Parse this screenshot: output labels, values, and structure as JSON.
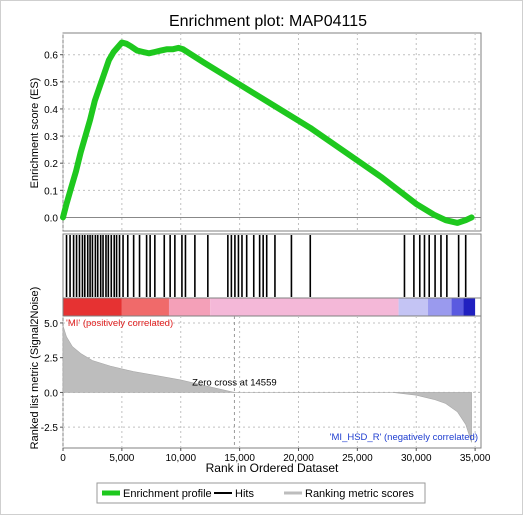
{
  "chart_data": {
    "type": "line",
    "title": "Enrichment plot: MAP04115",
    "xlabel": "Rank in Ordered Dataset",
    "xlim": [
      0,
      35500
    ],
    "x_ticks": [
      0,
      5000,
      10000,
      15000,
      20000,
      25000,
      30000,
      35000
    ],
    "x_tick_labels": [
      "0",
      "5,000",
      "10,000",
      "15,000",
      "20,000",
      "25,000",
      "30,000",
      "35,000"
    ],
    "grid": true,
    "legend_placement": "bottom",
    "colors": {
      "enrichment": "#1ec81e",
      "hits": "#000000",
      "ranking": "#bdbdbd",
      "positive": "#e63232",
      "negative": "#2a2ad8",
      "annotation_pos": "#e02020",
      "annotation_neg": "#1f3ed0"
    },
    "es_panel": {
      "ylabel": "Enrichment score (ES)",
      "ylim": [
        -0.05,
        0.68
      ],
      "y_ticks": [
        0.0,
        0.1,
        0.2,
        0.3,
        0.4,
        0.5,
        0.6
      ],
      "y_tick_labels": [
        "0.0",
        "0.1",
        "0.2",
        "0.3",
        "0.4",
        "0.5",
        "0.6"
      ],
      "series": [
        {
          "name": "Enrichment profile",
          "x": [
            0,
            300,
            700,
            1100,
            1500,
            1900,
            2300,
            2700,
            3100,
            3500,
            3900,
            4300,
            4700,
            5000,
            5400,
            5800,
            6300,
            6800,
            7300,
            7800,
            8300,
            8800,
            9300,
            9800,
            10200,
            12000,
            15000,
            18000,
            21000,
            24000,
            27000,
            30000,
            31500,
            32500,
            33500,
            34200,
            34700
          ],
          "y": [
            0.0,
            0.05,
            0.11,
            0.17,
            0.24,
            0.3,
            0.36,
            0.43,
            0.48,
            0.53,
            0.58,
            0.61,
            0.63,
            0.645,
            0.64,
            0.63,
            0.615,
            0.61,
            0.605,
            0.61,
            0.615,
            0.62,
            0.62,
            0.625,
            0.62,
            0.57,
            0.49,
            0.41,
            0.33,
            0.24,
            0.15,
            0.05,
            0.01,
            -0.01,
            -0.02,
            -0.01,
            0.0
          ]
        }
      ]
    },
    "hits_panel": {
      "legend_label": "Hits",
      "positions": [
        300,
        600,
        900,
        1150,
        1400,
        1650,
        1850,
        2100,
        2300,
        2500,
        2750,
        2950,
        3200,
        3400,
        3650,
        3850,
        4100,
        4350,
        4550,
        4800,
        5100,
        5500,
        6000,
        6500,
        7100,
        7400,
        7800,
        8600,
        9100,
        9500,
        10100,
        10400,
        11200,
        12300,
        14000,
        14300,
        14600,
        14900,
        15200,
        15600,
        16200,
        16700,
        17000,
        17300,
        18000,
        19400,
        21000,
        29000,
        29800,
        30300,
        30700,
        31100,
        31600,
        32100,
        32600,
        33600,
        34200
      ]
    },
    "ranking_panel": {
      "ylabel": "Ranked list metric (Signal2Noise)",
      "legend_label": "Ranking metric scores",
      "ylim": [
        -4.0,
        5.5
      ],
      "y_ticks": [
        5.0,
        2.5,
        0.0,
        -2.5
      ],
      "y_tick_labels": [
        "5.0",
        "2.5",
        "0.0",
        "-2.5"
      ],
      "zero_cross": 14559,
      "zero_cross_label": "Zero cross at 14559",
      "positive_label": "'MI' (positively correlated)",
      "negative_label": "'MI_HSD_R' (negatively correlated)",
      "curve": {
        "x": [
          0,
          300,
          800,
          1500,
          2500,
          4000,
          6000,
          8000,
          10000,
          12000,
          14559,
          28000,
          30000,
          31500,
          32500,
          33500,
          34200,
          34700
        ],
        "y": [
          4.8,
          4.0,
          3.3,
          2.8,
          2.3,
          1.9,
          1.5,
          1.2,
          0.9,
          0.5,
          0.0,
          0.0,
          -0.2,
          -0.5,
          -0.8,
          -1.4,
          -2.3,
          -3.6
        ]
      },
      "color_bar": [
        {
          "start": 0,
          "end": 5000,
          "color": "#e63232"
        },
        {
          "start": 5000,
          "end": 9000,
          "color": "#f06a6a"
        },
        {
          "start": 9000,
          "end": 12500,
          "color": "#f4a0b8"
        },
        {
          "start": 12500,
          "end": 28500,
          "color": "#f4b8d8"
        },
        {
          "start": 28500,
          "end": 31000,
          "color": "#c4c4f4"
        },
        {
          "start": 31000,
          "end": 33000,
          "color": "#9a9aee"
        },
        {
          "start": 33000,
          "end": 34000,
          "color": "#5a5ae0"
        },
        {
          "start": 34000,
          "end": 35000,
          "color": "#2020c0"
        }
      ]
    },
    "legend": [
      {
        "label": "Enrichment profile",
        "key": "enrichment"
      },
      {
        "label": "Hits",
        "key": "hits"
      },
      {
        "label": "Ranking metric scores",
        "key": "ranking"
      }
    ]
  }
}
